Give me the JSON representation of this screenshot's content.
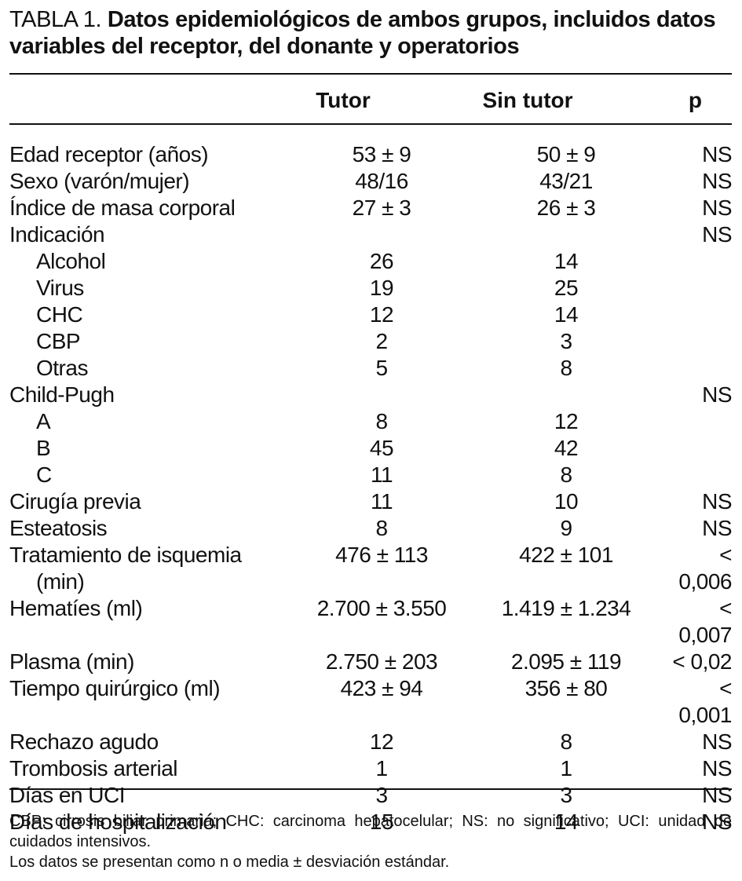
{
  "table": {
    "label": "TABLA 1.",
    "title": "Datos epidemiológicos de ambos grupos, incluidos datos variables del receptor, del donante y operatorios",
    "header": [
      "Tutor",
      "Sin tutor",
      "p"
    ],
    "rows": [
      {
        "cells": [
          "Edad receptor (años)",
          "53 ± 9",
          "50 ± 9",
          "NS"
        ]
      },
      {
        "cells": [
          "Sexo (varón/mujer)",
          "48/16",
          "43/21",
          "NS"
        ]
      },
      {
        "cells": [
          "Índice de masa corporal",
          "27 ± 3",
          "26 ± 3",
          "NS"
        ]
      },
      {
        "cells": [
          "Indicación",
          "",
          "",
          "NS"
        ],
        "sub": [
          [
            "Alcohol",
            "26",
            "14"
          ],
          [
            "Virus",
            "19",
            "25"
          ],
          [
            "CHC",
            "12",
            "14"
          ],
          [
            "CBP",
            "2",
            "3"
          ],
          [
            "Otras",
            "5",
            "8"
          ]
        ]
      },
      {
        "cells": [
          "Child-Pugh",
          "",
          "",
          "NS"
        ],
        "sub": [
          [
            "A",
            "8",
            "12"
          ],
          [
            "B",
            "45",
            "42"
          ],
          [
            "C",
            "11",
            "8"
          ]
        ]
      },
      {
        "cells": [
          "Cirugía previa",
          "11",
          "10",
          "NS"
        ]
      },
      {
        "cells": [
          "Esteatosis",
          "8",
          "9",
          "NS"
        ]
      },
      {
        "cells": [
          "Tratamiento de isquemia (min)",
          "476 ± 113",
          "422 ± 101",
          "< 0,006"
        ]
      },
      {
        "cells": [
          "Hematíes (ml)",
          "2.700 ± 3.550",
          "1.419 ± 1.234",
          "< 0,007"
        ]
      },
      {
        "cells": [
          "Plasma (min)",
          "2.750 ± 203",
          "2.095 ± 119",
          "< 0,02"
        ]
      },
      {
        "cells": [
          "Tiempo quirúrgico (ml)",
          "423 ± 94",
          "356 ± 80",
          "< 0,001"
        ]
      },
      {
        "cells": [
          "Rechazo agudo",
          "12",
          "8",
          "NS"
        ]
      },
      {
        "cells": [
          "Trombosis arterial",
          "1",
          "1",
          "NS"
        ]
      },
      {
        "cells": [
          "Días en UCI",
          "3",
          "3",
          "NS"
        ]
      },
      {
        "cells": [
          "Días de hospitalización",
          "15",
          "14",
          "NS"
        ]
      }
    ],
    "footnotes": [
      "CBP: cirrosis biliar primaria; CHC: carcinoma hepatocelular; NS: no significativo; UCI: unidad de cuidados intensivos.",
      "Los datos se presentan como n o media ± desviación estándar."
    ]
  }
}
